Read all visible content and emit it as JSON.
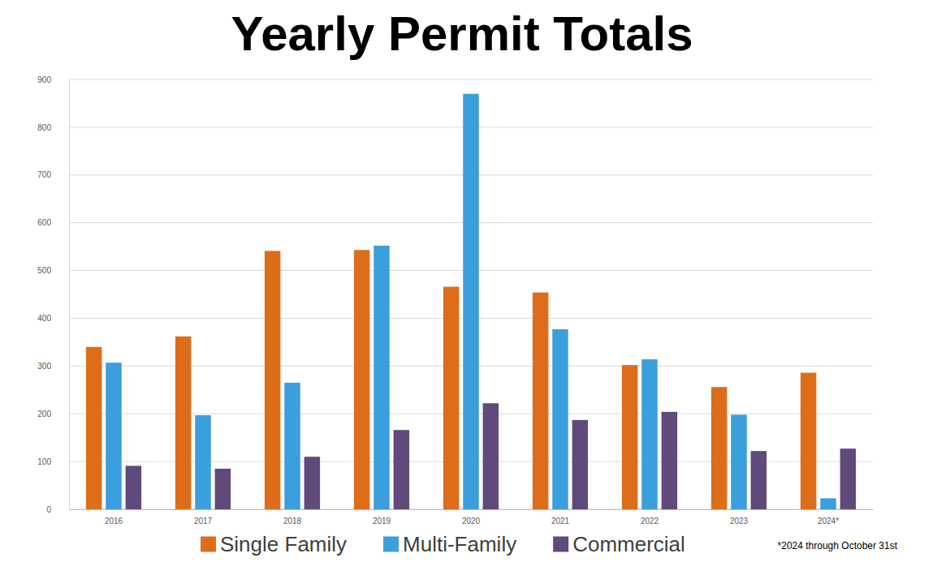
{
  "chart_data": {
    "type": "bar",
    "title": "Yearly Permit Totals",
    "categories": [
      "2016",
      "2017",
      "2018",
      "2019",
      "2020",
      "2021",
      "2022",
      "2023",
      "2024*"
    ],
    "series": [
      {
        "name": "Single Family",
        "color": "#de6d1a",
        "values": [
          340,
          362,
          541,
          543,
          466,
          454,
          302,
          256,
          286
        ]
      },
      {
        "name": "Multi-Family",
        "color": "#3b9edd",
        "values": [
          307,
          197,
          265,
          552,
          870,
          377,
          314,
          198,
          23
        ]
      },
      {
        "name": "Commercial",
        "color": "#604a7b",
        "values": [
          91,
          85,
          110,
          166,
          222,
          187,
          204,
          122,
          127
        ]
      }
    ],
    "ylim": [
      0,
      900
    ],
    "yticks": [
      0,
      100,
      200,
      300,
      400,
      500,
      600,
      700,
      800,
      900
    ],
    "grid": true,
    "legend": "bottom",
    "annotations": [
      "*2024 through October 31st"
    ]
  }
}
